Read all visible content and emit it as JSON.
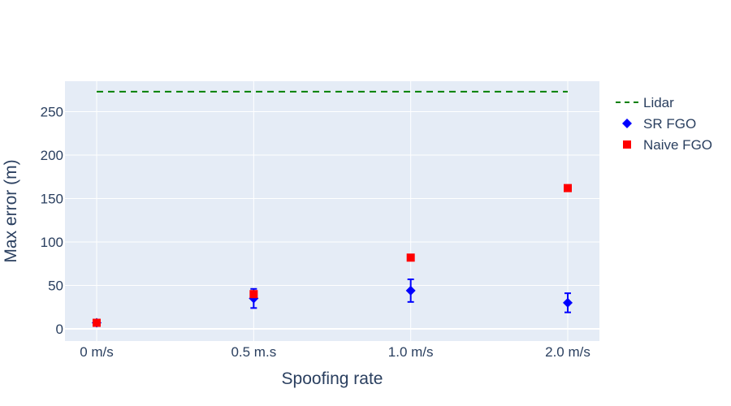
{
  "chart_data": {
    "type": "scatter",
    "title": "",
    "xlabel": "Spoofing rate",
    "ylabel": "Max error (m)",
    "categories": [
      "0 m/s",
      "0.5 m.s",
      "1.0 m/s",
      "2.0 m/s"
    ],
    "ylim": [
      -14,
      285
    ],
    "yticks": [
      0,
      50,
      100,
      150,
      200,
      250
    ],
    "grid": true,
    "legend_position": "right",
    "series": [
      {
        "name": "Lidar",
        "kind": "line",
        "dash": "dashed",
        "color": "#008000",
        "values": [
          273,
          273,
          273,
          273
        ]
      },
      {
        "name": "SR FGO",
        "kind": "markers",
        "marker": "diamond",
        "color": "#0000ff",
        "values": [
          7,
          35,
          44,
          30
        ],
        "error_low": [
          5,
          24,
          31,
          19
        ],
        "error_high": [
          9,
          46,
          57,
          41
        ]
      },
      {
        "name": "Naive FGO",
        "kind": "markers",
        "marker": "square",
        "color": "#ff0000",
        "values": [
          7,
          40,
          82,
          162
        ]
      }
    ],
    "colors": {
      "plot_background": "#e5ecf6",
      "grid": "#ffffff",
      "text": "#2a3f5f"
    }
  }
}
